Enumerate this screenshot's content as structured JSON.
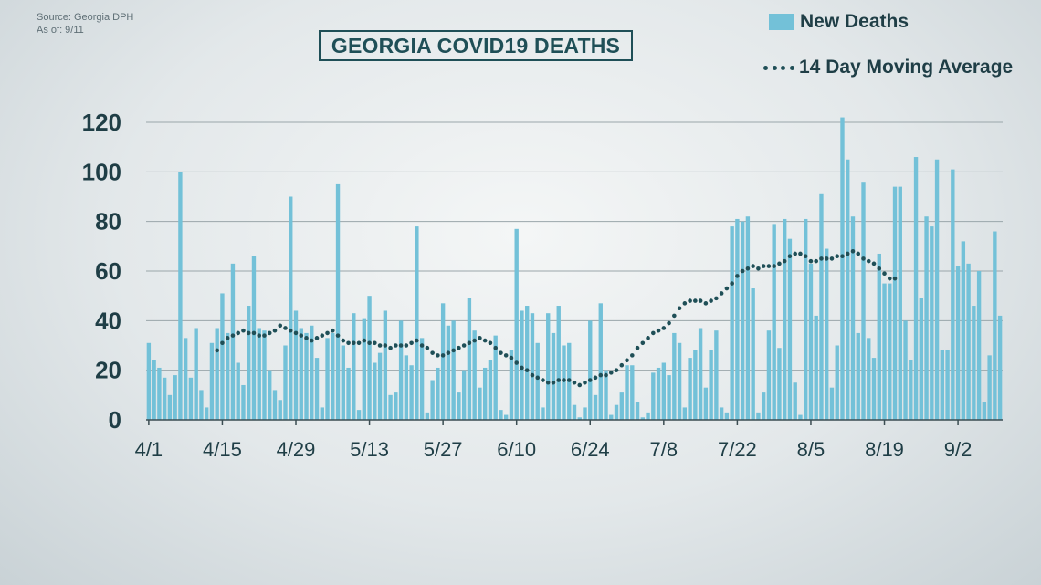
{
  "header": {
    "source_line": "Source: Georgia DPH",
    "asof_line": "As of: 9/11",
    "title": "GEORGIA COVID19 DEATHS"
  },
  "legend": {
    "bars_label": "New Deaths",
    "line_label": "14 Day Moving Average"
  },
  "colors": {
    "bars": "#73c1d8",
    "line": "#1f4f57",
    "axis_text": "#1f3e46",
    "grid": "#9aa6aa"
  },
  "chart_data": {
    "type": "bar",
    "title": "GEORGIA COVID19 DEATHS",
    "x_ticks": [
      "4/1",
      "4/15",
      "4/29",
      "5/13",
      "5/27",
      "6/10",
      "6/24",
      "7/8",
      "7/22",
      "8/5",
      "8/19",
      "9/2"
    ],
    "ylim": [
      0,
      120
    ],
    "y_ticks": [
      0,
      20,
      40,
      60,
      80,
      100,
      120
    ],
    "grid": true,
    "legend_position": "top-right",
    "series": [
      {
        "name": "New Deaths",
        "type": "bar",
        "values": [
          31,
          24,
          21,
          17,
          10,
          18,
          100,
          33,
          17,
          37,
          12,
          5,
          31,
          37,
          51,
          35,
          63,
          23,
          14,
          46,
          66,
          37,
          36,
          20,
          12,
          8,
          30,
          90,
          44,
          37,
          35,
          38,
          25,
          5,
          33,
          35,
          95,
          30,
          21,
          43,
          4,
          41,
          50,
          23,
          27,
          44,
          10,
          11,
          40,
          26,
          22,
          78,
          33,
          3,
          16,
          21,
          47,
          38,
          40,
          11,
          20,
          49,
          36,
          13,
          21,
          24,
          34,
          4,
          2,
          28,
          77,
          44,
          46,
          43,
          31,
          5,
          43,
          35,
          46,
          30,
          31,
          6,
          1,
          5,
          40,
          10,
          47,
          20,
          2,
          6,
          11,
          22,
          22,
          7,
          1,
          3,
          19,
          21,
          23,
          18,
          35,
          31,
          5,
          25,
          28,
          37,
          13,
          28,
          36,
          5,
          3,
          78,
          81,
          80,
          82,
          53,
          3,
          11,
          36,
          79,
          29,
          81,
          73,
          15,
          2,
          81,
          63,
          42,
          91,
          69,
          13,
          30,
          122,
          105,
          82,
          35,
          96,
          33,
          25,
          67,
          55,
          55,
          94,
          94,
          40,
          24,
          106,
          49,
          82,
          78,
          105,
          28,
          28,
          101,
          62,
          72,
          63,
          46,
          60,
          7,
          26,
          76,
          42
        ]
      },
      {
        "name": "14 Day Moving Average",
        "type": "line",
        "start_index": 13,
        "values": [
          28,
          31,
          33,
          34,
          35,
          36,
          35,
          35,
          34,
          34,
          35,
          36,
          38,
          37,
          36,
          35,
          34,
          33,
          32,
          33,
          34,
          35,
          36,
          34,
          32,
          31,
          31,
          31,
          32,
          31,
          31,
          30,
          30,
          29,
          30,
          30,
          30,
          31,
          32,
          30,
          29,
          27,
          26,
          26,
          27,
          28,
          29,
          30,
          31,
          32,
          33,
          32,
          31,
          29,
          27,
          26,
          25,
          23,
          21,
          20,
          18,
          17,
          16,
          15,
          15,
          16,
          16,
          16,
          15,
          14,
          15,
          16,
          17,
          18,
          18,
          19,
          20,
          22,
          24,
          26,
          29,
          31,
          33,
          35,
          36,
          37,
          39,
          42,
          45,
          47,
          48,
          48,
          48,
          47,
          48,
          49,
          51,
          53,
          55,
          58,
          60,
          61,
          62,
          61,
          62,
          62,
          62,
          63,
          64,
          66,
          67,
          67,
          66,
          64,
          64,
          65,
          65,
          65,
          66,
          66,
          67,
          68,
          67,
          65,
          64,
          63,
          61,
          59,
          57,
          57
        ]
      }
    ]
  }
}
